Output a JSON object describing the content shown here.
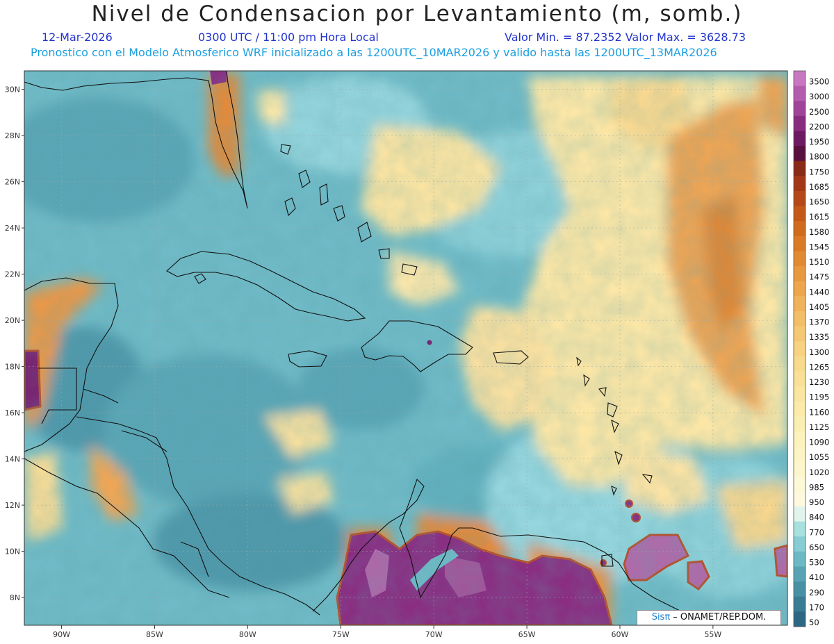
{
  "header": {
    "title": "Nivel de Condensacion por Levantamiento (m, somb.)",
    "date": "12-Mar-2026",
    "time": "0300 UTC / 11:00 pm Hora Local",
    "value_range": "Valor Min. = 87.2352  Valor Max. = 3628.73",
    "model_info": "Pronostico con el Modelo Atmosferico WRF inicializado a las 1200UTC_10MAR2026 y valido hasta las  1200UTC_13MAR2026"
  },
  "map": {
    "lon_labels": [
      "90W",
      "85W",
      "80W",
      "75W",
      "70W",
      "65W",
      "60W",
      "55W"
    ],
    "lat_labels": [
      "30N",
      "28N",
      "26N",
      "24N",
      "22N",
      "20N",
      "18N",
      "16N",
      "14N",
      "12N",
      "10N",
      "8N"
    ],
    "lon_values": [
      -90,
      -85,
      -80,
      -75,
      -70,
      -65,
      -60,
      -55
    ],
    "lat_values": [
      30,
      28,
      26,
      24,
      22,
      20,
      18,
      16,
      14,
      12,
      10,
      8
    ],
    "lon_range": [
      -92,
      -51
    ],
    "lat_range": [
      6.8,
      30.8
    ]
  },
  "colorbar": {
    "levels": [
      "3500",
      "3000",
      "2500",
      "2200",
      "1950",
      "1800",
      "1750",
      "1685",
      "1650",
      "1615",
      "1580",
      "1545",
      "1510",
      "1475",
      "1440",
      "1405",
      "1370",
      "1335",
      "1300",
      "1265",
      "1230",
      "1195",
      "1160",
      "1125",
      "1090",
      "1055",
      "1020",
      "985",
      "950",
      "840",
      "770",
      "650",
      "530",
      "410",
      "290",
      "170",
      "50"
    ],
    "colors": [
      "#c878c0",
      "#b45cae",
      "#a0449a",
      "#882c80",
      "#6e1a62",
      "#58103e",
      "#8a2a18",
      "#a23818",
      "#b44818",
      "#c45818",
      "#d06a1c",
      "#da7a26",
      "#e28a32",
      "#e8983e",
      "#eda64c",
      "#f0b25a",
      "#f3be68",
      "#f5c874",
      "#f7d280",
      "#f8da8c",
      "#f9e096",
      "#fae6a0",
      "#fbeaaa",
      "#fbeeb2",
      "#fcf2bc",
      "#fcf4c4",
      "#fdf6cc",
      "#fdf8d6",
      "#fef9de",
      "#e0f4ec",
      "#a8e0e0",
      "#88ccd4",
      "#6cb8c4",
      "#58a4b4",
      "#4890a4",
      "#3a7c94",
      "#2c6884"
    ]
  },
  "credit": {
    "brand": "Sisπ",
    "org": " – ONAMET/REP.DOM."
  }
}
